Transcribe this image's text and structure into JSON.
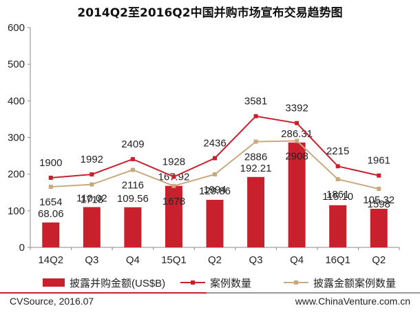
{
  "chart_data": {
    "type": "bar",
    "title": "2014Q2至2016Q2中国并购市场宣布交易趋势图",
    "categories": [
      "14Q2",
      "Q3",
      "Q4",
      "15Q1",
      "Q2",
      "Q3",
      "Q4",
      "16Q1",
      "Q2"
    ],
    "ylim": [
      0,
      600
    ],
    "yticks": [
      "0",
      "100",
      "200",
      "300",
      "400",
      "500",
      "600"
    ],
    "grid": false,
    "legend_placement": "bottom",
    "series": [
      {
        "name": "披露并购金额(US$B)",
        "kind": "bar",
        "color": "#c8202d",
        "values": [
          68.06,
          110.02,
          109.56,
          167.92,
          129.86,
          192.21,
          286.31,
          115.1,
          105.32
        ],
        "labels": [
          "68.06",
          "110.02",
          "109.56",
          "167.92",
          "129.86",
          "192.21",
          "286.31",
          "115.10",
          "105.32"
        ]
      },
      {
        "name": "案例数量",
        "kind": "line",
        "color": "#c8202d",
        "values": [
          1900,
          1992,
          2409,
          1928,
          2436,
          3581,
          3392,
          2215,
          1961
        ],
        "labels": [
          "1900",
          "1992",
          "2409",
          "1928",
          "2436",
          "3581",
          "3392",
          "2215",
          "1961"
        ]
      },
      {
        "name": "披露金额案例数量",
        "kind": "line",
        "color": "#c8a97e",
        "values": [
          1654,
          1718,
          2116,
          1678,
          1994,
          2886,
          2908,
          1861,
          1598
        ],
        "labels": [
          "1654",
          "1718",
          "2116",
          "1678",
          "1994",
          "2886",
          "2908",
          "1861",
          "1598"
        ]
      }
    ]
  },
  "footer": {
    "source": "CVSource, 2016.07",
    "website": "www.ChinaVenture.com.cn"
  }
}
